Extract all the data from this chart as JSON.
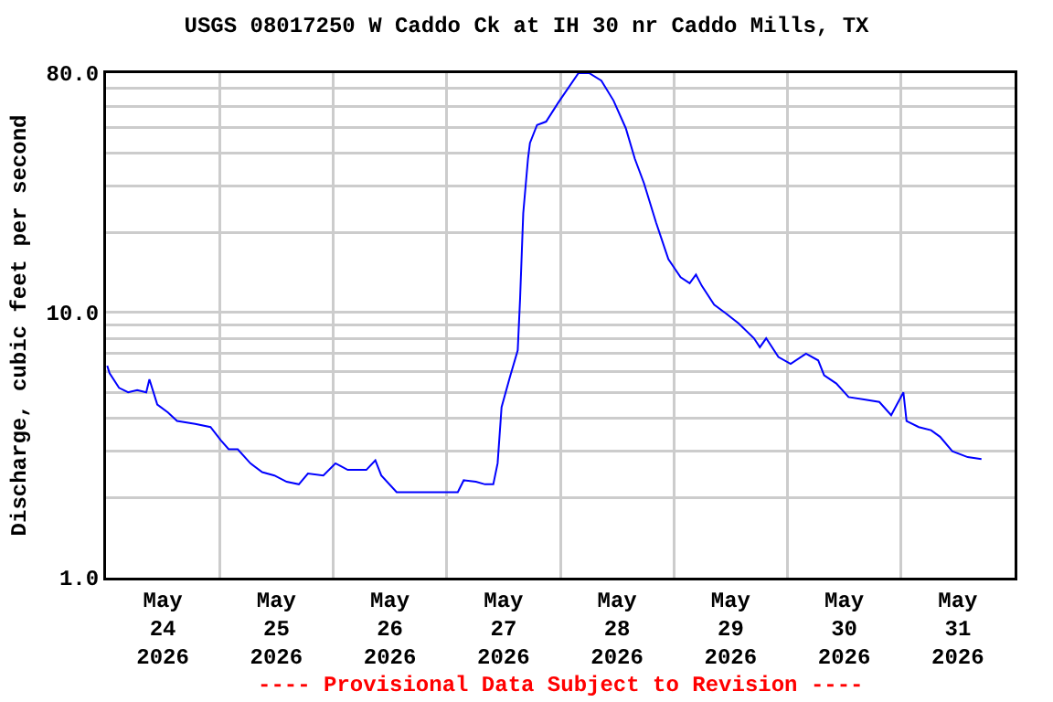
{
  "chart_data": {
    "type": "line",
    "title": "USGS 08017250 W Caddo Ck at IH 30 nr Caddo Mills, TX",
    "ylabel": "Discharge, cubic feet per second",
    "annotations": [
      "---- Provisional Data Subject to Revision ----"
    ],
    "log": true,
    "grid": true,
    "marker": "none",
    "line_style": "solid",
    "xlim": [
      "2026-05-24",
      "2026-06-01"
    ],
    "xticks": [
      {
        "value": "2026-05-24T12:00",
        "label": "May\n24\n2026"
      },
      {
        "value": "2026-05-25T12:00",
        "label": "May\n25\n2026"
      },
      {
        "value": "2026-05-26T12:00",
        "label": "May\n26\n2026"
      },
      {
        "value": "2026-05-27T12:00",
        "label": "May\n27\n2026"
      },
      {
        "value": "2026-05-28T12:00",
        "label": "May\n28\n2026"
      },
      {
        "value": "2026-05-29T12:00",
        "label": "May\n29\n2026"
      },
      {
        "value": "2026-05-30T12:00",
        "label": "May\n30\n2026"
      },
      {
        "value": "2026-05-31T12:00",
        "label": "May\n31\n2026"
      },
      {
        "value": "2026-05-25",
        "label": null
      },
      {
        "value": "2026-05-26",
        "label": null
      },
      {
        "value": "2026-05-27",
        "label": null
      },
      {
        "value": "2026-05-28",
        "label": null
      },
      {
        "value": "2026-05-29",
        "label": null
      },
      {
        "value": "2026-05-30",
        "label": null
      },
      {
        "value": "2026-05-31",
        "label": null
      }
    ],
    "ylim": [
      1,
      80
    ],
    "yticks": [
      {
        "value": 1,
        "label": "1.0"
      },
      {
        "value": 2,
        "label": null
      },
      {
        "value": 3,
        "label": null
      },
      {
        "value": 4,
        "label": null
      },
      {
        "value": 5,
        "label": null
      },
      {
        "value": 6,
        "label": null
      },
      {
        "value": 7,
        "label": null
      },
      {
        "value": 8,
        "label": null
      },
      {
        "value": 9,
        "label": null
      },
      {
        "value": 10,
        "label": "10.0"
      },
      {
        "value": 20,
        "label": null
      },
      {
        "value": 30,
        "label": null
      },
      {
        "value": 40,
        "label": null
      },
      {
        "value": 50,
        "label": null
      },
      {
        "value": 60,
        "label": null
      },
      {
        "value": 70,
        "label": null
      },
      {
        "value": 80,
        "label": "80.0"
      }
    ],
    "series": [
      {
        "color": "#0000ff",
        "x": [
          "2026-05-24T00:15",
          "2026-05-24T00:45",
          "2026-05-24T02:45",
          "2026-05-24T04:40",
          "2026-05-24T06:35",
          "2026-05-24T08:30",
          "2026-05-24T09:10",
          "2026-05-24T10:50",
          "2026-05-24T13:05",
          "2026-05-24T15:00",
          "2026-05-24T18:50",
          "2026-05-24T22:05",
          "2026-05-25T00:15",
          "2026-05-25T01:55",
          "2026-05-25T03:50",
          "2026-05-25T06:30",
          "2026-05-25T09:00",
          "2026-05-25T11:35",
          "2026-05-25T14:10",
          "2026-05-25T16:45",
          "2026-05-25T18:40",
          "2026-05-25T21:55",
          "2026-05-26T00:30",
          "2026-05-26T03:05",
          "2026-05-26T07:00",
          "2026-05-26T08:55",
          "2026-05-26T10:10",
          "2026-05-26T13:25",
          "2026-05-26T18:35",
          "2026-05-26T20:30",
          "2026-05-27T00:25",
          "2026-05-27T02:20",
          "2026-05-27T03:35",
          "2026-05-27T06:10",
          "2026-05-27T08:05",
          "2026-05-27T09:50",
          "2026-05-27T10:45",
          "2026-05-27T11:35",
          "2026-05-27T13:20",
          "2026-05-27T15:00",
          "2026-05-27T15:30",
          "2026-05-27T16:10",
          "2026-05-27T17:10",
          "2026-05-27T17:35",
          "2026-05-27T19:05",
          "2026-05-27T21:00",
          "2026-05-27T23:35",
          "2026-05-28T03:50",
          "2026-05-28T06:05",
          "2026-05-28T08:40",
          "2026-05-28T11:15",
          "2026-05-28T13:50",
          "2026-05-28T15:45",
          "2026-05-28T17:40",
          "2026-05-28T20:15",
          "2026-05-28T22:50",
          "2026-05-29T01:25",
          "2026-05-29T03:20",
          "2026-05-29T04:40",
          "2026-05-29T05:55",
          "2026-05-29T08:30",
          "2026-05-29T11:05",
          "2026-05-29T13:40",
          "2026-05-29T16:55",
          "2026-05-29T18:10",
          "2026-05-29T19:30",
          "2026-05-29T22:05",
          "2026-05-30T00:40",
          "2026-05-30T03:55",
          "2026-05-30T06:30",
          "2026-05-30T07:45",
          "2026-05-30T10:20",
          "2026-05-30T12:55",
          "2026-05-30T16:10",
          "2026-05-30T19:25",
          "2026-05-30T21:55",
          "2026-05-31T00:30",
          "2026-05-31T01:10",
          "2026-05-31T03:45",
          "2026-05-31T06:20",
          "2026-05-31T08:15",
          "2026-05-31T10:50",
          "2026-05-31T14:05",
          "2026-05-31T17:00"
        ],
        "values": [
          6.3,
          5.9,
          5.2,
          5.0,
          5.1,
          5.0,
          5.6,
          4.5,
          4.2,
          3.9,
          3.8,
          3.7,
          3.3,
          3.05,
          3.05,
          2.7,
          2.5,
          2.43,
          2.3,
          2.25,
          2.47,
          2.43,
          2.7,
          2.55,
          2.55,
          2.77,
          2.43,
          2.1,
          2.1,
          2.1,
          2.1,
          2.1,
          2.33,
          2.3,
          2.25,
          2.25,
          2.7,
          4.4,
          5.7,
          7.2,
          11.3,
          23.7,
          38,
          43.6,
          51,
          52.5,
          62,
          80,
          80,
          75,
          63,
          49.6,
          38,
          30.8,
          21.8,
          15.9,
          13.6,
          12.9,
          13.9,
          12.6,
          10.7,
          9.9,
          9.1,
          8.0,
          7.4,
          8.0,
          6.8,
          6.4,
          7.0,
          6.6,
          5.8,
          5.4,
          4.8,
          4.7,
          4.6,
          4.1,
          5.0,
          3.9,
          3.7,
          3.6,
          3.4,
          3.0,
          2.85,
          2.8
        ]
      }
    ]
  }
}
